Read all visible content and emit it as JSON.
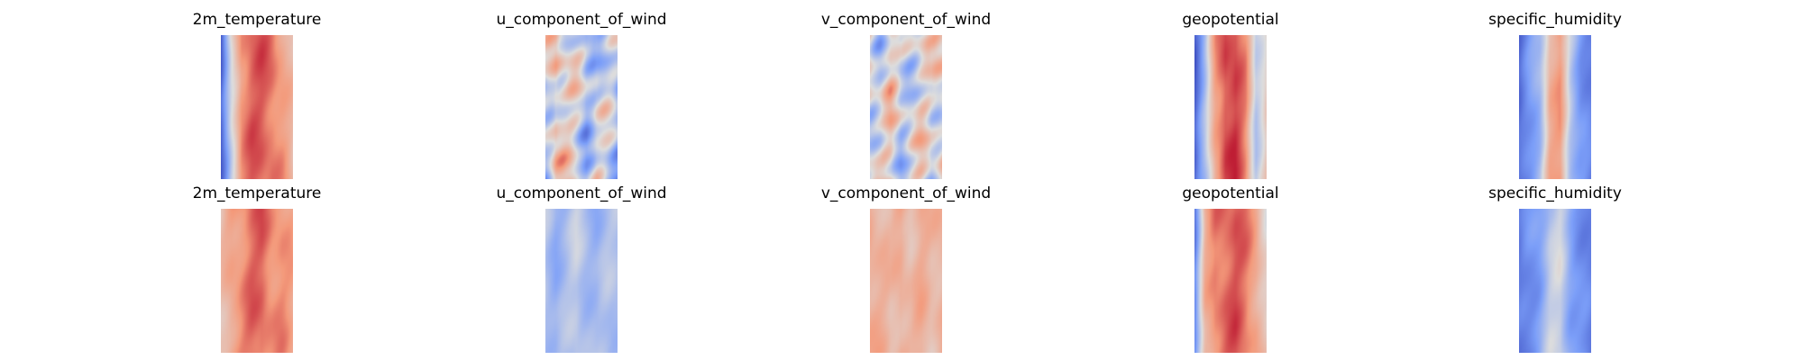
{
  "chart_data": [
    {
      "type": "heatmap",
      "title": "2m_temperature",
      "colormap": "coolwarm",
      "row": 1,
      "column": 1,
      "grid": false,
      "axes_visible": false,
      "colorbar": false,
      "dominant_tone": "warm",
      "profile": [
        0.05,
        0.48,
        0.78,
        0.84,
        0.85,
        0.82,
        0.74,
        0.62
      ]
    },
    {
      "type": "heatmap",
      "title": "u_component_of_wind",
      "colormap": "coolwarm",
      "row": 1,
      "column": 2,
      "grid": false,
      "axes_visible": false,
      "colorbar": false,
      "dominant_tone": "mixed",
      "profile": [
        0.42,
        0.64,
        0.52,
        0.46,
        0.38,
        0.48,
        0.41,
        0.36
      ]
    },
    {
      "type": "heatmap",
      "title": "v_component_of_wind",
      "colormap": "coolwarm",
      "row": 1,
      "column": 3,
      "grid": false,
      "axes_visible": false,
      "colorbar": false,
      "dominant_tone": "mixed",
      "profile": [
        0.52,
        0.47,
        0.55,
        0.44,
        0.5,
        0.51,
        0.46,
        0.58
      ]
    },
    {
      "type": "heatmap",
      "title": "geopotential",
      "colormap": "coolwarm",
      "row": 1,
      "column": 4,
      "grid": false,
      "axes_visible": false,
      "colorbar": false,
      "dominant_tone": "warm",
      "profile": [
        0.08,
        0.35,
        0.72,
        0.9,
        0.9,
        0.76,
        0.42,
        0.58
      ]
    },
    {
      "type": "heatmap",
      "title": "specific_humidity",
      "colormap": "coolwarm",
      "row": 1,
      "column": 5,
      "grid": false,
      "axes_visible": false,
      "colorbar": false,
      "dominant_tone": "cool",
      "profile": [
        0.08,
        0.22,
        0.36,
        0.68,
        0.72,
        0.42,
        0.25,
        0.15
      ]
    },
    {
      "type": "heatmap",
      "title": "2m_temperature",
      "colormap": "coolwarm",
      "row": 2,
      "column": 1,
      "grid": false,
      "axes_visible": false,
      "colorbar": false,
      "dominant_tone": "warm",
      "profile": [
        0.6,
        0.72,
        0.77,
        0.82,
        0.84,
        0.78,
        0.76,
        0.7
      ]
    },
    {
      "type": "heatmap",
      "title": "u_component_of_wind",
      "colormap": "coolwarm",
      "row": 2,
      "column": 2,
      "grid": false,
      "axes_visible": false,
      "colorbar": false,
      "dominant_tone": "cool",
      "profile": [
        0.4,
        0.33,
        0.36,
        0.42,
        0.38,
        0.34,
        0.37,
        0.39
      ]
    },
    {
      "type": "heatmap",
      "title": "v_component_of_wind",
      "colormap": "coolwarm",
      "row": 2,
      "column": 3,
      "grid": false,
      "axes_visible": false,
      "colorbar": false,
      "dominant_tone": "warm",
      "profile": [
        0.7,
        0.66,
        0.62,
        0.69,
        0.64,
        0.67,
        0.63,
        0.68
      ]
    },
    {
      "type": "heatmap",
      "title": "geopotential",
      "colormap": "coolwarm",
      "row": 2,
      "column": 4,
      "grid": false,
      "axes_visible": false,
      "colorbar": false,
      "dominant_tone": "warm",
      "profile": [
        0.18,
        0.65,
        0.8,
        0.84,
        0.86,
        0.8,
        0.72,
        0.55
      ]
    },
    {
      "type": "heatmap",
      "title": "specific_humidity",
      "colormap": "coolwarm",
      "row": 2,
      "column": 5,
      "grid": false,
      "axes_visible": false,
      "colorbar": false,
      "dominant_tone": "cool",
      "profile": [
        0.12,
        0.2,
        0.28,
        0.42,
        0.45,
        0.3,
        0.22,
        0.14
      ]
    }
  ]
}
